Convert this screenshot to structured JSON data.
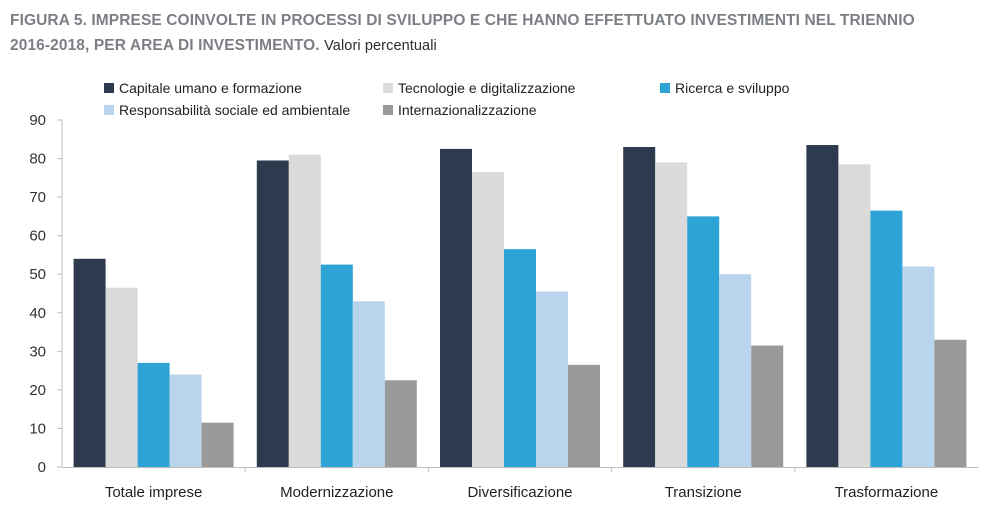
{
  "header": {
    "title_line1": "FIGURA 5. IMPRESE COINVOLTE IN PROCESSI DI SVILUPPO E CHE HANNO EFFETTUATO INVESTIMENTI NEL TRIENNIO",
    "title_line2": "2016-2018, PER AREA DI INVESTIMENTO.",
    "subtitle": "Valori percentuali"
  },
  "chart_data": {
    "type": "bar",
    "title": "FIGURA 5. IMPRESE COINVOLTE IN PROCESSI DI SVILUPPO E CHE HANNO EFFETTUATO INVESTIMENTI NEL TRIENNIO 2016-2018, PER AREA DI INVESTIMENTO.",
    "subtitle": "Valori percentuali",
    "xlabel": "",
    "ylabel": "",
    "ylim": [
      0,
      90
    ],
    "yticks": [
      0,
      10,
      20,
      30,
      40,
      50,
      60,
      70,
      80,
      90
    ],
    "grid": false,
    "legend_position": "top",
    "categories": [
      "Totale imprese",
      "Modernizzazione",
      "Diversificazione",
      "Transizione",
      "Trasformazione"
    ],
    "series": [
      {
        "name": "Capitale umano e formazione",
        "color": "#2e3a4d",
        "values": [
          54,
          79.5,
          82.5,
          83,
          83.5
        ]
      },
      {
        "name": "Tecnologie e digitalizzazione",
        "color": "#dadada",
        "values": [
          46.5,
          81,
          76.5,
          79,
          78.5
        ]
      },
      {
        "name": "Ricerca e sviluppo",
        "color": "#2ea3d6",
        "values": [
          27,
          52.5,
          56.5,
          65,
          66.5
        ]
      },
      {
        "name": "Responsabilità sociale ed ambientale",
        "color": "#b9d5ee",
        "values": [
          24,
          43,
          45.5,
          50,
          52
        ]
      },
      {
        "name": "Internazionalizzazione",
        "color": "#9a9a9a",
        "values": [
          11.5,
          22.5,
          26.5,
          31.5,
          33
        ]
      }
    ]
  }
}
